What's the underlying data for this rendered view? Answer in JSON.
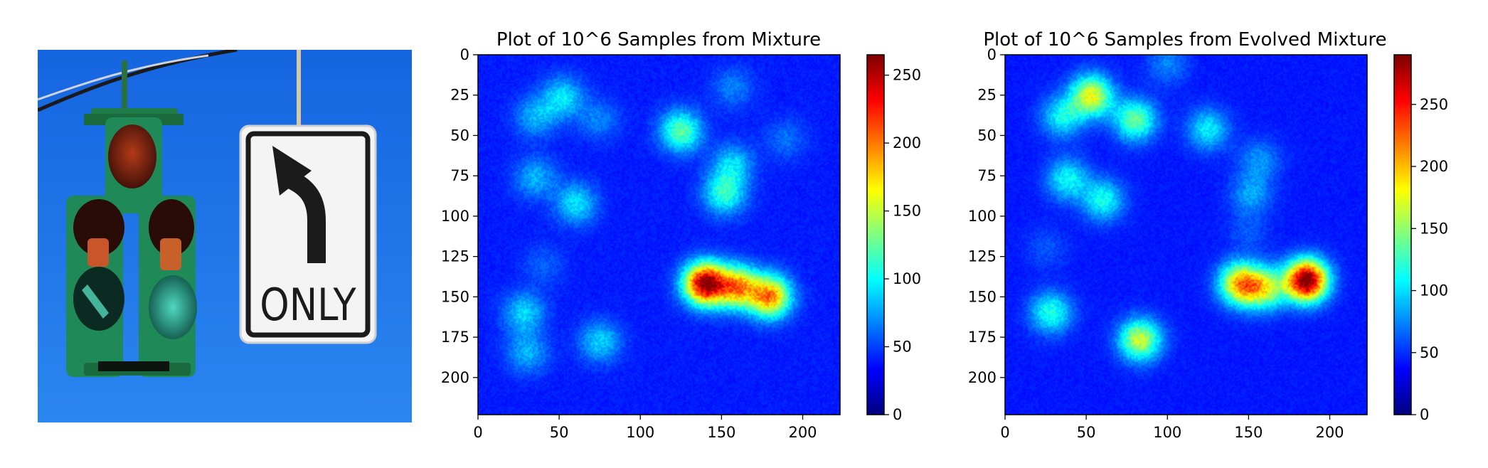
{
  "photo": {
    "description_icon": "traffic-light-and-sign",
    "sign_text": "ONLY"
  },
  "colors": {
    "background": "#ffffff",
    "sky": "#1f6fe0",
    "signal_green": "#1f8a57",
    "colormap": "jet"
  },
  "chart_data": [
    {
      "type": "heatmap",
      "title": "Plot of 10^6 Samples from Mixture",
      "xlabel": "",
      "ylabel": "",
      "xlim": [
        0,
        223
      ],
      "ylim": [
        223,
        0
      ],
      "xticks": [
        0,
        50,
        100,
        150,
        200
      ],
      "yticks": [
        0,
        25,
        50,
        75,
        100,
        125,
        150,
        175,
        200
      ],
      "colorbar": {
        "min": 0,
        "max": 265,
        "ticks": [
          0,
          50,
          100,
          150,
          200,
          250
        ]
      },
      "blobs": [
        {
          "x": 52,
          "y": 26,
          "peak": 60
        },
        {
          "x": 35,
          "y": 38,
          "peak": 45
        },
        {
          "x": 74,
          "y": 40,
          "peak": 30
        },
        {
          "x": 125,
          "y": 47,
          "peak": 95
        },
        {
          "x": 157,
          "y": 20,
          "peak": 30
        },
        {
          "x": 157,
          "y": 68,
          "peak": 55
        },
        {
          "x": 152,
          "y": 86,
          "peak": 80
        },
        {
          "x": 190,
          "y": 52,
          "peak": 25
        },
        {
          "x": 35,
          "y": 76,
          "peak": 45
        },
        {
          "x": 60,
          "y": 92,
          "peak": 60
        },
        {
          "x": 140,
          "y": 142,
          "peak": 250
        },
        {
          "x": 160,
          "y": 144,
          "peak": 160
        },
        {
          "x": 180,
          "y": 150,
          "peak": 175
        },
        {
          "x": 28,
          "y": 160,
          "peak": 55
        },
        {
          "x": 30,
          "y": 185,
          "peak": 45
        },
        {
          "x": 75,
          "y": 178,
          "peak": 55
        },
        {
          "x": 40,
          "y": 130,
          "peak": 20
        }
      ]
    },
    {
      "type": "heatmap",
      "title": "Plot of 10^6 Samples from Evolved Mixture",
      "xlabel": "",
      "ylabel": "",
      "xlim": [
        0,
        223
      ],
      "ylim": [
        223,
        0
      ],
      "xticks": [
        0,
        50,
        100,
        150,
        200
      ],
      "yticks": [
        0,
        25,
        50,
        75,
        100,
        125,
        150,
        175,
        200
      ],
      "colorbar": {
        "min": 0,
        "max": 290,
        "ticks": [
          0,
          50,
          100,
          150,
          200,
          250
        ]
      },
      "blobs": [
        {
          "x": 53,
          "y": 25,
          "peak": 150
        },
        {
          "x": 35,
          "y": 38,
          "peak": 75
        },
        {
          "x": 80,
          "y": 40,
          "peak": 110
        },
        {
          "x": 100,
          "y": 5,
          "peak": 35
        },
        {
          "x": 125,
          "y": 46,
          "peak": 70
        },
        {
          "x": 157,
          "y": 65,
          "peak": 40
        },
        {
          "x": 152,
          "y": 86,
          "peak": 45
        },
        {
          "x": 38,
          "y": 77,
          "peak": 75
        },
        {
          "x": 60,
          "y": 90,
          "peak": 80
        },
        {
          "x": 145,
          "y": 142,
          "peak": 175
        },
        {
          "x": 160,
          "y": 145,
          "peak": 130
        },
        {
          "x": 186,
          "y": 140,
          "peak": 290
        },
        {
          "x": 28,
          "y": 160,
          "peak": 85
        },
        {
          "x": 83,
          "y": 177,
          "peak": 140
        },
        {
          "x": 25,
          "y": 120,
          "peak": 20
        },
        {
          "x": 150,
          "y": 110,
          "peak": 20
        }
      ]
    }
  ]
}
